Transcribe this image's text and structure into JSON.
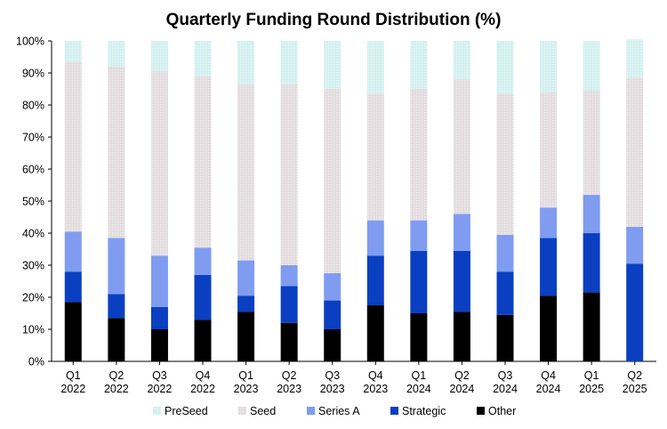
{
  "chart_data": {
    "type": "bar",
    "stacked": true,
    "title": "Quarterly Funding Round Distribution (%)",
    "xlabel": "",
    "ylabel": "",
    "ylim": [
      0,
      100
    ],
    "yticks": [
      "0%",
      "10%",
      "20%",
      "30%",
      "40%",
      "50%",
      "60%",
      "70%",
      "80%",
      "90%",
      "100%"
    ],
    "grid": false,
    "legend_position": "bottom",
    "categories": [
      [
        "Q1",
        "2022"
      ],
      [
        "Q2",
        "2022"
      ],
      [
        "Q3",
        "2022"
      ],
      [
        "Q4",
        "2022"
      ],
      [
        "Q1",
        "2023"
      ],
      [
        "Q2",
        "2023"
      ],
      [
        "Q3",
        "2023"
      ],
      [
        "Q4",
        "2023"
      ],
      [
        "Q1",
        "2024"
      ],
      [
        "Q2",
        "2024"
      ],
      [
        "Q3",
        "2024"
      ],
      [
        "Q4",
        "2024"
      ],
      [
        "Q1",
        "2025"
      ],
      [
        "Q2",
        "2025"
      ]
    ],
    "series": [
      {
        "name": "Other",
        "color": "#000000",
        "values": [
          18.5,
          13.5,
          10,
          13,
          15.5,
          12,
          10,
          17.5,
          15,
          15.5,
          14.5,
          20.5,
          21.5,
          0
        ]
      },
      {
        "name": "Strategic",
        "color": "#0a3fc2",
        "values": [
          9.5,
          7.5,
          7,
          14,
          5,
          11.5,
          9,
          15.5,
          19.5,
          19,
          13.5,
          18,
          18.5,
          30.5
        ]
      },
      {
        "name": "Series A",
        "color": "#7f9cf0",
        "values": [
          12.5,
          17.5,
          16,
          8.5,
          11,
          6.5,
          8.5,
          11,
          9.5,
          11.5,
          11.5,
          9.5,
          12,
          11.5
        ]
      },
      {
        "name": "Seed",
        "color": "#e3dde0",
        "values": [
          53,
          53.5,
          57.5,
          53.5,
          55,
          56.5,
          57.5,
          39.5,
          41,
          42,
          44,
          36,
          32.5,
          46.5
        ]
      },
      {
        "name": "PreSeed",
        "color": "#d4f0f0",
        "values": [
          6.5,
          8,
          9.5,
          11,
          13.5,
          13.5,
          15,
          16.5,
          15,
          12,
          16.5,
          16,
          15.5,
          12
        ]
      }
    ],
    "legend_order": [
      "PreSeed",
      "Seed",
      "Series A",
      "Strategic",
      "Other"
    ]
  }
}
